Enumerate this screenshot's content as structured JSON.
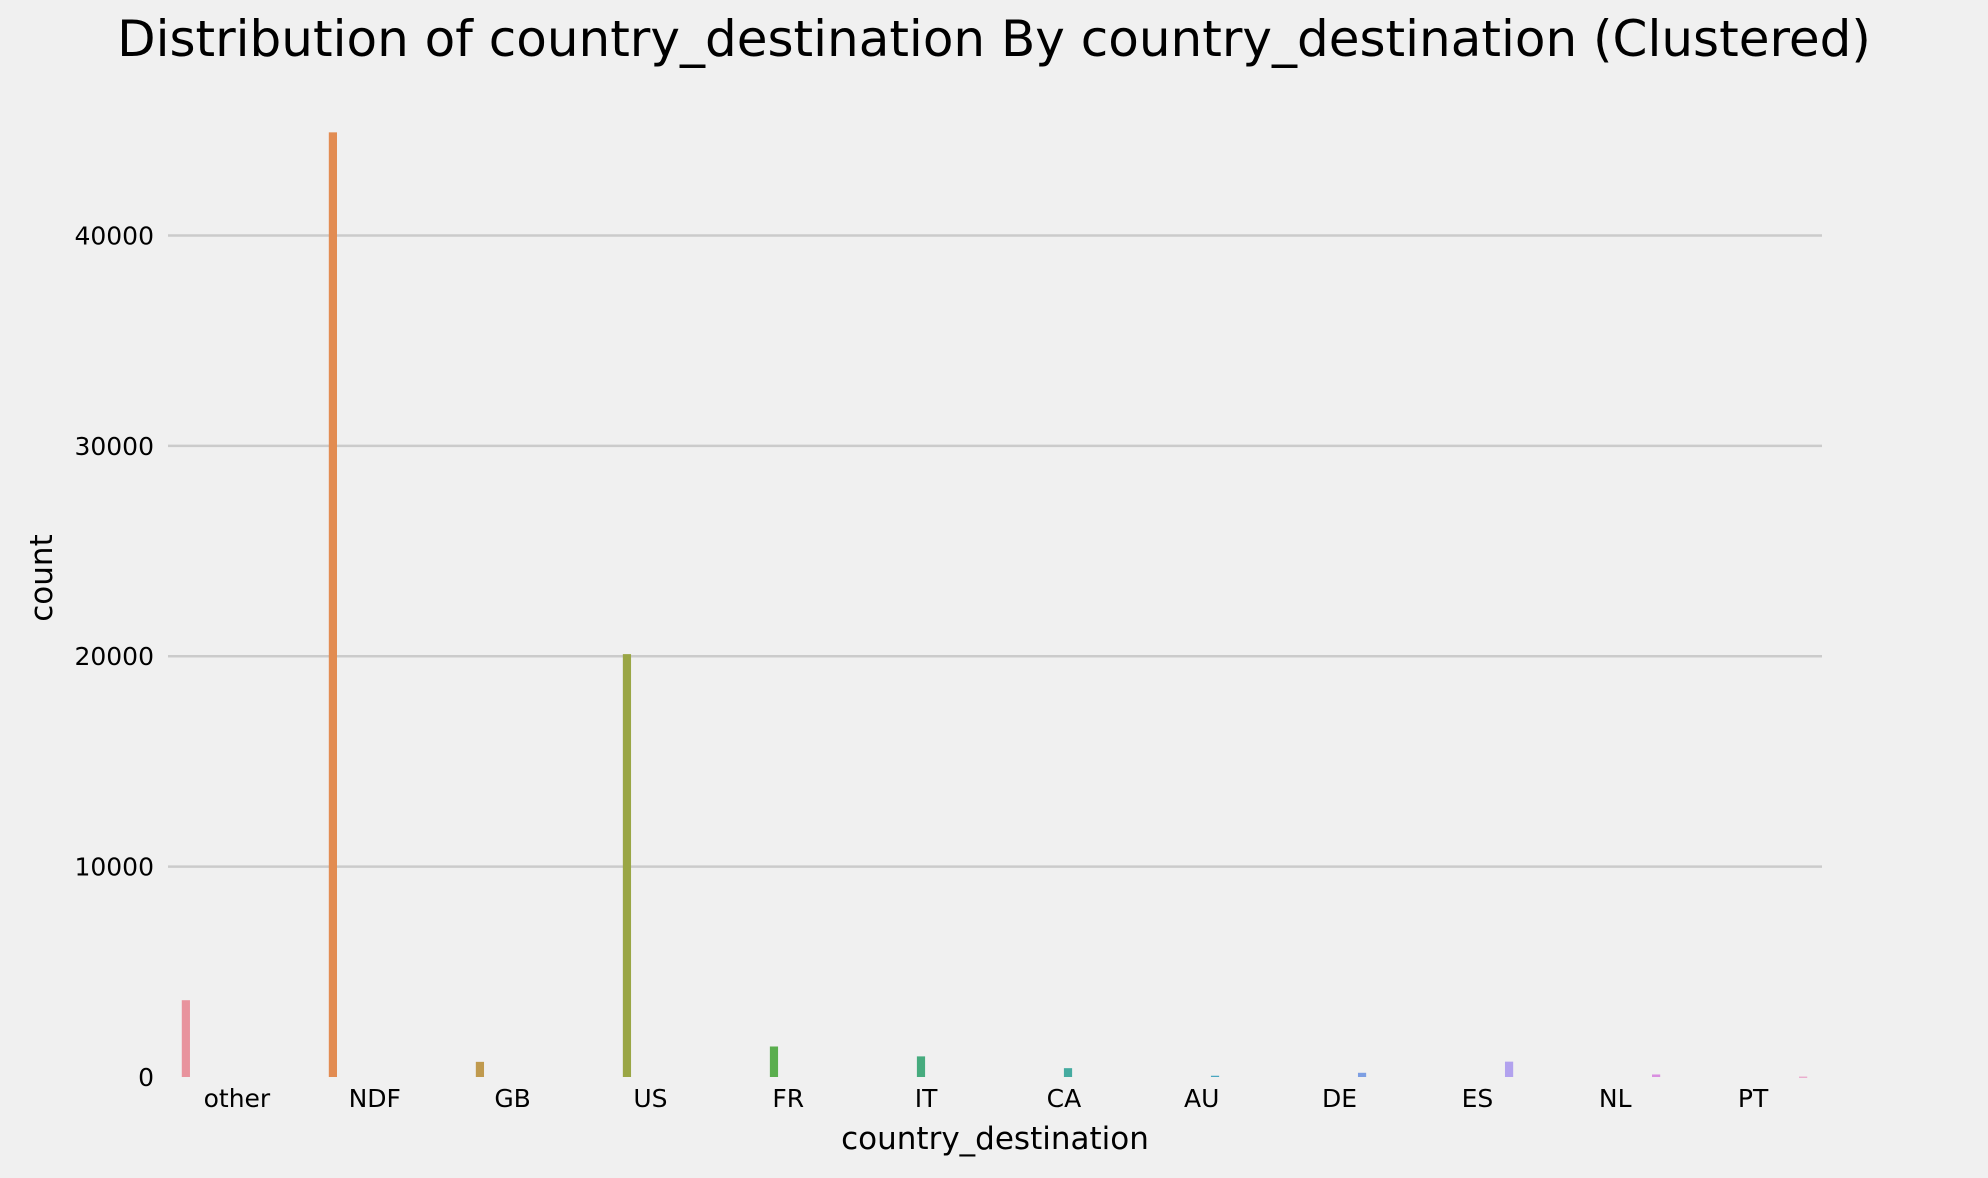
{
  "chart_data": {
    "type": "bar",
    "title": "Distribution of country_destination By country_destination (Clustered)",
    "xlabel": "country_destination",
    "ylabel": "count",
    "ylim": [
      0,
      46200
    ],
    "yticks": [
      0,
      10000,
      20000,
      30000,
      40000
    ],
    "grid": "horizontal",
    "legend": "none",
    "categories": [
      "other",
      "NDF",
      "GB",
      "US",
      "FR",
      "IT",
      "CA",
      "AU",
      "DE",
      "ES",
      "NL",
      "PT"
    ],
    "series": [
      {
        "values": [
          3650,
          0,
          0,
          0,
          0,
          0,
          0,
          0,
          0,
          0,
          0,
          0
        ],
        "color": "#e8939d"
      },
      {
        "values": [
          0,
          44900,
          0,
          0,
          0,
          0,
          0,
          0,
          0,
          0,
          0,
          0
        ],
        "color": "#e28c52"
      },
      {
        "values": [
          0,
          0,
          720,
          0,
          0,
          0,
          0,
          0,
          0,
          0,
          0,
          0
        ],
        "color": "#c09a4e"
      },
      {
        "values": [
          0,
          0,
          0,
          20100,
          0,
          0,
          0,
          0,
          0,
          0,
          0,
          0
        ],
        "color": "#9aa645"
      },
      {
        "values": [
          0,
          0,
          0,
          0,
          1450,
          0,
          0,
          0,
          0,
          0,
          0,
          0
        ],
        "color": "#5aae4e"
      },
      {
        "values": [
          0,
          0,
          0,
          0,
          0,
          980,
          0,
          0,
          0,
          0,
          0,
          0
        ],
        "color": "#46ab7e"
      },
      {
        "values": [
          0,
          0,
          0,
          0,
          0,
          0,
          420,
          0,
          0,
          0,
          0,
          0
        ],
        "color": "#45aba0"
      },
      {
        "values": [
          0,
          0,
          0,
          0,
          0,
          0,
          0,
          60,
          0,
          0,
          0,
          0
        ],
        "color": "#4aa7c0"
      },
      {
        "values": [
          0,
          0,
          0,
          0,
          0,
          0,
          0,
          0,
          200,
          0,
          0,
          0
        ],
        "color": "#7d9fe3"
      },
      {
        "values": [
          0,
          0,
          0,
          0,
          0,
          0,
          0,
          0,
          0,
          730,
          0,
          0
        ],
        "color": "#b2a2ee"
      },
      {
        "values": [
          0,
          0,
          0,
          0,
          0,
          0,
          0,
          0,
          0,
          0,
          120,
          0
        ],
        "color": "#d98fe0"
      },
      {
        "values": [
          0,
          0,
          0,
          0,
          0,
          0,
          0,
          0,
          0,
          0,
          0,
          15
        ],
        "color": "#e890bf"
      }
    ]
  }
}
